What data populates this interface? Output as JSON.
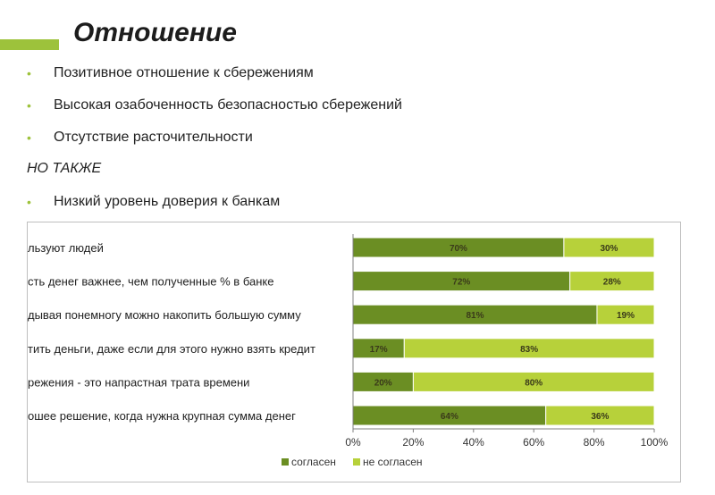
{
  "slide": {
    "title": "Отношение",
    "bullets": [
      "Позитивное отношение к сбережениям",
      "Высокая озабоченность безопасностью сбережений",
      "Отсутствие расточительности"
    ],
    "note": "НО ТАКЖЕ",
    "bullets_after": [
      "Низкий уровень доверия к банкам"
    ]
  },
  "colors": {
    "agree": "#6b8e23",
    "disagree": "#b7d13a",
    "accent": "#9dc23b"
  },
  "chart_data": {
    "type": "bar",
    "orientation": "horizontal",
    "stacked": "percent",
    "categories": [
      "льзуют людей",
      "сть денег важнее, чем полученные % в банке",
      "дывая понемногу можно накопить большую сумму",
      "тить деньги, даже если для этого нужно взять кредит",
      "режения - это напрастная трата времени",
      "ошее решение, когда нужна крупная сумма денег"
    ],
    "series": [
      {
        "name": "согласен",
        "values": [
          70,
          72,
          81,
          17,
          20,
          64
        ],
        "labels": [
          "70%",
          "72%",
          "81%",
          "17%",
          "20%",
          "64%"
        ]
      },
      {
        "name": "не согласен",
        "values": [
          30,
          28,
          19,
          83,
          80,
          36
        ],
        "labels": [
          "30%",
          "28%",
          "19%",
          "83%",
          "80%",
          "36%"
        ]
      }
    ],
    "xlim": [
      0,
      100
    ],
    "xticks": [
      "0%",
      "20%",
      "40%",
      "60%",
      "80%",
      "100%"
    ],
    "legend": "bottom"
  }
}
